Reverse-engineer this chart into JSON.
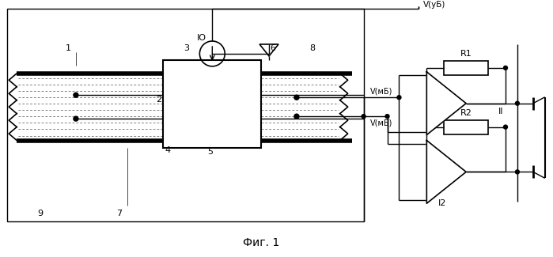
{
  "fig_label": "Фиг. 1",
  "bg_color": "#ffffff",
  "line_color": "#000000",
  "labels": {
    "IO": "IO",
    "1": "1",
    "2": "2",
    "3": "3",
    "4": "4",
    "5": "5",
    "6": "6",
    "7": "7",
    "8": "8",
    "9": "9",
    "R1": "R1",
    "R2": "R2",
    "II": "II",
    "I2": "I2",
    "V_uB": "V(уБ)",
    "V_mB": "V(мБ)"
  }
}
